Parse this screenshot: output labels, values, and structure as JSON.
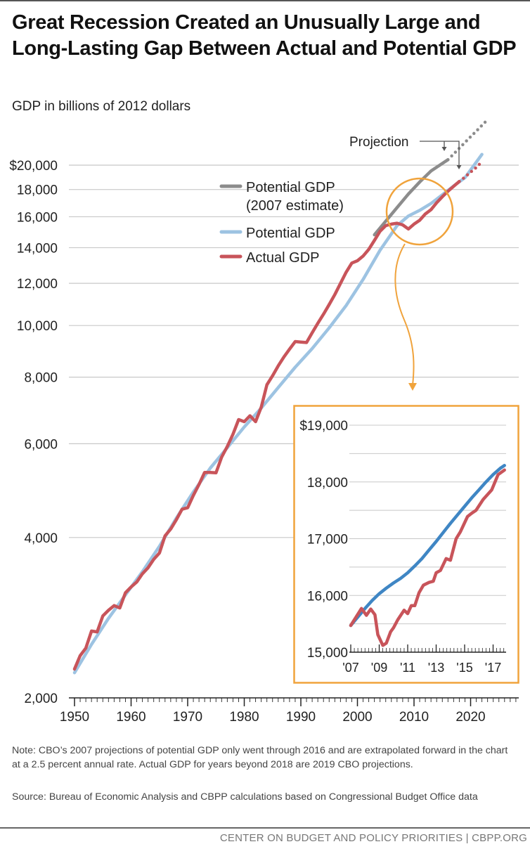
{
  "header": {
    "title": "Great Recession Created an Unusually Large and Long-Lasting Gap Between Actual and Potential GDP",
    "subtitle": "GDP in billions of 2012 dollars"
  },
  "notes": {
    "note": "Note: CBO’s 2007 projections of potential GDP only went through 2016 and are extrapolated forward in the chart at a 2.5 percent annual rate.  Actual GDP for years beyond 2018 are 2019 CBO projections.",
    "source": "Source: Bureau of Economic Analysis and CBPP calculations based on Congressional Budget Office data"
  },
  "footer": "CENTER ON BUDGET AND POLICY PRIORITIES | CBPP.ORG",
  "colors": {
    "potential_2007": "#8c8c8c",
    "potential": "#9dc3e2",
    "potential_inset": "#3f86c4",
    "actual": "#c8545a",
    "highlight": "#f0a33c",
    "grid": "#c8c8c8",
    "axis": "#222222"
  },
  "chart_data": [
    {
      "type": "line",
      "title": "Great Recession Created an Unusually Large and Long-Lasting Gap Between Actual and Potential GDP",
      "ylabel": "GDP in billions of 2012 dollars",
      "xlabel": "",
      "yscale": "log",
      "ylim": [
        2000,
        20000
      ],
      "xlim": [
        1950,
        2027
      ],
      "y_ticks": [
        2000,
        4000,
        6000,
        8000,
        10000,
        12000,
        14000,
        16000,
        18000,
        20000
      ],
      "y_tick_labels": [
        "2,000",
        "4,000",
        "6,000",
        "8,000",
        "10,000",
        "12,000",
        "14,000",
        "16,000",
        "18,000",
        "$20,000"
      ],
      "x_ticks": [
        1950,
        1960,
        1970,
        1980,
        1990,
        2000,
        2010,
        2020
      ],
      "x_tick_labels": [
        "1950",
        "1960",
        "1970",
        "1980",
        "1990",
        "2000",
        "2010",
        "2020"
      ],
      "grid": true,
      "legend_position": "center-top",
      "annotation": "Projection",
      "series": [
        {
          "name": "Potential GDP (2007 estimate)",
          "legend": [
            "Potential GDP",
            "(2007 estimate)"
          ],
          "color_key": "potential_2007",
          "x": [
            2003,
            2005,
            2007,
            2009,
            2011,
            2013,
            2016
          ],
          "values": [
            14800,
            15700,
            16650,
            17650,
            18600,
            19500,
            20480
          ],
          "projection_x": [
            2016,
            2017,
            2018,
            2019,
            2020,
            2021,
            2022,
            2023
          ],
          "projection_values": [
            20480,
            20990,
            21520,
            22060,
            22610,
            23170,
            23750,
            24340
          ]
        },
        {
          "name": "Potential GDP",
          "legend": [
            "Potential GDP"
          ],
          "color_key": "potential",
          "x": [
            1950,
            1953,
            1956,
            1959,
            1962,
            1965,
            1968,
            1971,
            1974,
            1977,
            1980,
            1983,
            1986,
            1989,
            1992,
            1995,
            1998,
            2001,
            2004,
            2007,
            2009,
            2011,
            2013,
            2015,
            2017,
            2019,
            2022
          ],
          "values": [
            2230,
            2520,
            2820,
            3120,
            3450,
            3850,
            4350,
            4870,
            5400,
            5900,
            6450,
            7000,
            7650,
            8350,
            9050,
            9900,
            10900,
            12200,
            13850,
            15400,
            16050,
            16450,
            16950,
            17600,
            18280,
            18950,
            20950
          ]
        },
        {
          "name": "Actual GDP",
          "legend": [
            "Actual GDP"
          ],
          "color_key": "actual",
          "x": [
            1950,
            1951,
            1952,
            1953,
            1954,
            1955,
            1956,
            1957,
            1958,
            1959,
            1960,
            1961,
            1962,
            1963,
            1964,
            1965,
            1966,
            1967,
            1968,
            1969,
            1970,
            1971,
            1972,
            1973,
            1974,
            1975,
            1976,
            1977,
            1978,
            1979,
            1980,
            1981,
            1982,
            1983,
            1984,
            1985,
            1986,
            1987,
            1988,
            1989,
            1990,
            1991,
            1992,
            1993,
            1994,
            1995,
            1996,
            1997,
            1998,
            1999,
            2000,
            2001,
            2002,
            2003,
            2004,
            2005,
            2006,
            2007,
            2008,
            2009,
            2010,
            2011,
            2012,
            2013,
            2014,
            2015,
            2016,
            2017,
            2018
          ],
          "values": [
            2265,
            2400,
            2480,
            2670,
            2660,
            2850,
            2920,
            2980,
            2950,
            3150,
            3230,
            3300,
            3420,
            3510,
            3640,
            3740,
            4030,
            4150,
            4320,
            4520,
            4550,
            4800,
            5030,
            5300,
            5300,
            5290,
            5660,
            5930,
            6250,
            6660,
            6600,
            6770,
            6600,
            7030,
            7740,
            8050,
            8400,
            8730,
            9030,
            9330,
            9310,
            9290,
            9690,
            10100,
            10500,
            10950,
            11430,
            12000,
            12590,
            13100,
            13230,
            13500,
            13900,
            14450,
            15030,
            15400,
            15500,
            15560,
            15450,
            15180,
            15500,
            15760,
            16200,
            16500,
            17000,
            17450,
            17870,
            18250,
            18640
          ],
          "projection_x": [
            2018,
            2019,
            2020,
            2021,
            2022
          ],
          "projection_values": [
            18640,
            19000,
            19400,
            19800,
            20300
          ]
        }
      ]
    },
    {
      "type": "line",
      "title": "Inset: 2007–2017 detail",
      "yscale": "linear",
      "ylim": [
        15000,
        19000
      ],
      "xlim": [
        2007,
        2018
      ],
      "y_ticks": [
        15000,
        15500,
        16000,
        16500,
        17000,
        17500,
        18000,
        18500,
        19000
      ],
      "y_tick_labels": [
        "15,000",
        "",
        "16,000",
        "",
        "17,000",
        "",
        "18,000",
        "",
        "$19,000"
      ],
      "x_ticks": [
        2007,
        2009,
        2011,
        2013,
        2015,
        2017
      ],
      "x_tick_labels": [
        "'07",
        "'09",
        "'11",
        "'13",
        "'15",
        "'17"
      ],
      "minor_ticks": "quarterly",
      "grid": true,
      "series": [
        {
          "name": "Potential GDP",
          "color_key": "potential_inset",
          "x": [
            2007.0,
            2007.5,
            2008.0,
            2008.5,
            2009.0,
            2009.5,
            2010.0,
            2010.5,
            2011.0,
            2011.5,
            2012.0,
            2012.5,
            2013.0,
            2013.5,
            2014.0,
            2014.5,
            2015.0,
            2015.5,
            2016.0,
            2016.5,
            2017.0,
            2017.5,
            2017.8
          ],
          "values": [
            15470,
            15620,
            15770,
            15910,
            16030,
            16130,
            16220,
            16300,
            16400,
            16520,
            16650,
            16800,
            16950,
            17110,
            17270,
            17420,
            17570,
            17720,
            17860,
            18000,
            18130,
            18240,
            18290
          ]
        },
        {
          "name": "Actual GDP",
          "color_key": "actual",
          "x": [
            2007.0,
            2007.75,
            2008.1,
            2008.4,
            2008.7,
            2008.9,
            2009.25,
            2009.5,
            2009.8,
            2010.0,
            2010.3,
            2010.75,
            2011.0,
            2011.25,
            2011.5,
            2011.8,
            2012.1,
            2012.5,
            2012.8,
            2013.0,
            2013.3,
            2013.7,
            2014.0,
            2014.4,
            2014.7,
            2015.2,
            2015.5,
            2015.8,
            2016.3,
            2016.9,
            2017.35,
            2017.8
          ],
          "values": [
            15470,
            15770,
            15650,
            15760,
            15660,
            15310,
            15120,
            15160,
            15360,
            15430,
            15570,
            15740,
            15680,
            15820,
            15820,
            16050,
            16180,
            16230,
            16250,
            16400,
            16440,
            16650,
            16620,
            17000,
            17120,
            17390,
            17450,
            17500,
            17690,
            17860,
            18130,
            18210
          ]
        }
      ]
    }
  ]
}
